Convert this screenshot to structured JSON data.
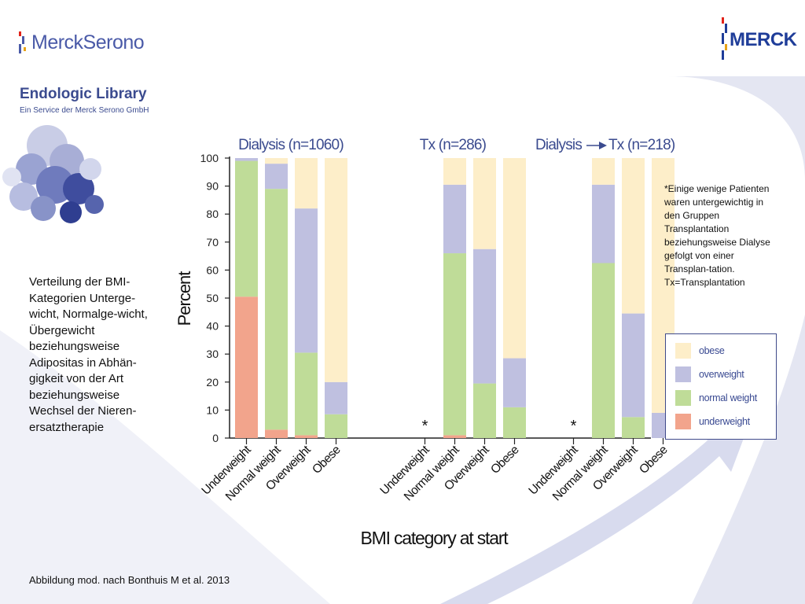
{
  "header": {
    "merck_serono_logo": "MerckSerono",
    "merck_logo": "MERCK",
    "library_title": "Endologic Library",
    "library_subtitle": "Ein Service der Merck Serono GmbH"
  },
  "caption": "Verteilung der BMI-Kategorien Unterge-wicht, Normalge-wicht, Übergewicht beziehungsweise Adipositas in Abhän-gigkeit von der Art beziehungsweise Wechsel der Nieren-ersatztherapie",
  "footnote": "*Einige wenige Patienten waren untergewichtig in den Gruppen Transplantation beziehungsweise Dialyse gefolgt von einer Transplan-tation. Tx=Transplantation",
  "source": "Abbildung mod. nach Bonthuis M et al. 2013",
  "colors": {
    "obese": "#fdeec9",
    "overweight": "#bfc0e0",
    "normal weight": "#bfdc98",
    "underweight": "#f2a48c",
    "brand_blue": "#3b4b8f"
  },
  "chart_data": {
    "type": "bar",
    "stacked": true,
    "ylabel": "Percent",
    "xlabel": "BMI category at start",
    "ylim": [
      0,
      100
    ],
    "yticks": [
      0,
      10,
      20,
      30,
      40,
      50,
      60,
      70,
      80,
      90,
      100
    ],
    "stack_order": [
      "underweight",
      "normal weight",
      "overweight",
      "obese"
    ],
    "legend": [
      {
        "key": "obese",
        "label": "obese"
      },
      {
        "key": "overweight",
        "label": "overweight"
      },
      {
        "key": "normal weight",
        "label": "normal weight"
      },
      {
        "key": "underweight",
        "label": "underweight"
      }
    ],
    "legend_position": "right",
    "groups": [
      {
        "title": "Dialysis (n=1060)",
        "bars": [
          {
            "category": "Underweight",
            "values": {
              "underweight": 50.5,
              "normal weight": 48.5,
              "overweight": 1.0,
              "obese": 0
            }
          },
          {
            "category": "Normal weight",
            "values": {
              "underweight": 3.0,
              "normal weight": 86.0,
              "overweight": 9.0,
              "obese": 2.0
            }
          },
          {
            "category": "Overweight",
            "values": {
              "underweight": 1.0,
              "normal weight": 29.5,
              "overweight": 51.5,
              "obese": 18.0
            }
          },
          {
            "category": "Obese",
            "values": {
              "underweight": 0,
              "normal weight": 8.5,
              "overweight": 11.5,
              "obese": 80.0
            }
          }
        ]
      },
      {
        "title": "Tx (n=286)",
        "bars": [
          {
            "category": "Underweight",
            "values": {
              "underweight": 0,
              "normal weight": 0,
              "overweight": 0,
              "obese": 0
            },
            "annotation": "*"
          },
          {
            "category": "Normal weight",
            "values": {
              "underweight": 1.0,
              "normal weight": 65.0,
              "overweight": 24.5,
              "obese": 9.5
            }
          },
          {
            "category": "Overweight",
            "values": {
              "underweight": 0,
              "normal weight": 19.5,
              "overweight": 48.0,
              "obese": 32.5
            }
          },
          {
            "category": "Obese",
            "values": {
              "underweight": 0,
              "normal weight": 11.0,
              "overweight": 17.5,
              "obese": 71.5
            }
          }
        ]
      },
      {
        "title_left": "Dialysis",
        "title_right": "Tx (n=218)",
        "bars": [
          {
            "category": "Underweight",
            "values": {
              "underweight": 0,
              "normal weight": 0,
              "overweight": 0,
              "obese": 0
            },
            "annotation": "*"
          },
          {
            "category": "Normal weight",
            "values": {
              "underweight": 0,
              "normal weight": 62.5,
              "overweight": 28.0,
              "obese": 9.5
            }
          },
          {
            "category": "Overweight",
            "values": {
              "underweight": 0,
              "normal weight": 7.5,
              "overweight": 37.0,
              "obese": 55.5
            }
          },
          {
            "category": "Obese",
            "values": {
              "underweight": 0,
              "normal weight": 0,
              "overweight": 9.0,
              "obese": 91.0
            }
          }
        ]
      }
    ]
  }
}
